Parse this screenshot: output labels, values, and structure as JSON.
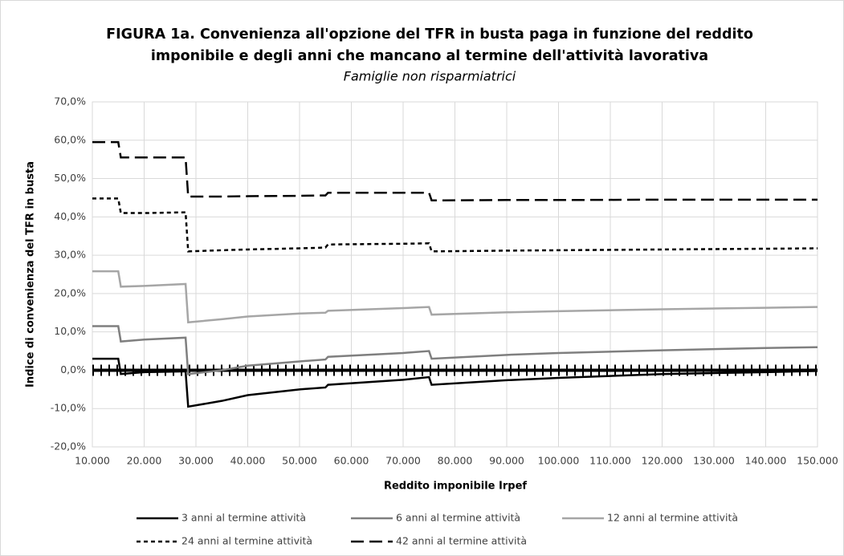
{
  "chart_data": {
    "type": "line",
    "title": [
      "FIGURA 1a. Convenienza all'opzione del TFR in busta paga in funzione del reddito",
      "imponibile e degli anni che mancano al termine dell'attività lavorativa"
    ],
    "subtitle": "Famiglie non risparmiatrici",
    "x_label": "Reddito imponibile Irpef",
    "y_label": "Indice di convenienza del TFR in  busta",
    "x": [
      10000,
      15000,
      15500,
      20000,
      28000,
      28500,
      35000,
      40000,
      50000,
      55000,
      55500,
      70000,
      75000,
      75500,
      90000,
      100000,
      120000,
      140000,
      150000
    ],
    "series": [
      {
        "name": "3 anni al termine attività",
        "color": "#000000",
        "dash": "none",
        "values": [
          3.0,
          3.0,
          -1.0,
          -0.5,
          -0.3,
          -9.5,
          -8.0,
          -6.5,
          -5.0,
          -4.5,
          -3.8,
          -2.5,
          -1.8,
          -3.8,
          -2.6,
          -2.0,
          -1.0,
          -0.5,
          -0.2
        ]
      },
      {
        "name": "6 anni al termine attività",
        "color": "#7f7f7f",
        "dash": "none",
        "values": [
          11.5,
          11.5,
          7.5,
          8.0,
          8.5,
          -1.0,
          0.0,
          1.2,
          2.3,
          2.8,
          3.5,
          4.5,
          5.0,
          3.0,
          4.0,
          4.5,
          5.2,
          5.8,
          6.0
        ]
      },
      {
        "name": "12 anni al termine attività",
        "color": "#a6a6a6",
        "dash": "none",
        "values": [
          25.8,
          25.8,
          21.8,
          22.0,
          22.5,
          12.5,
          13.3,
          14.0,
          14.8,
          15.0,
          15.5,
          16.2,
          16.5,
          14.5,
          15.1,
          15.4,
          15.9,
          16.3,
          16.5
        ]
      },
      {
        "name": "24 anni al termine attività",
        "color": "#000000",
        "dash": "5,4",
        "values": [
          44.8,
          44.8,
          41.0,
          41.0,
          41.2,
          31.0,
          31.3,
          31.5,
          31.8,
          32.0,
          32.8,
          33.0,
          33.1,
          31.0,
          31.2,
          31.3,
          31.5,
          31.7,
          31.8
        ]
      },
      {
        "name": "42 anni al termine attività",
        "color": "#000000",
        "dash": "16,7",
        "values": [
          59.5,
          59.5,
          55.5,
          55.5,
          55.5,
          45.3,
          45.3,
          45.4,
          45.5,
          45.6,
          46.3,
          46.3,
          46.3,
          44.3,
          44.4,
          44.4,
          44.5,
          44.5,
          44.5
        ]
      }
    ],
    "xlim": [
      10000,
      150000
    ],
    "xticks": [
      {
        "value": 10000,
        "label": "10.000"
      },
      {
        "value": 20000,
        "label": "20.000"
      },
      {
        "value": 30000,
        "label": "30.000"
      },
      {
        "value": 40000,
        "label": "40.000"
      },
      {
        "value": 50000,
        "label": "50.000"
      },
      {
        "value": 60000,
        "label": "60.000"
      },
      {
        "value": 70000,
        "label": "70.000"
      },
      {
        "value": 80000,
        "label": "80.000"
      },
      {
        "value": 90000,
        "label": "90.000"
      },
      {
        "value": 100000,
        "label": "100.000"
      },
      {
        "value": 110000,
        "label": "110.000"
      },
      {
        "value": 120000,
        "label": "120.000"
      },
      {
        "value": 130000,
        "label": "130.000"
      },
      {
        "value": 140000,
        "label": "140.000"
      },
      {
        "value": 150000,
        "label": "150.000"
      }
    ],
    "ylim": [
      -20,
      70
    ],
    "yticks": [
      {
        "value": -20,
        "label": "-20,0%"
      },
      {
        "value": -10,
        "label": "-10,0%"
      },
      {
        "value": 0,
        "label": "0,0%"
      },
      {
        "value": 10,
        "label": "10,0%"
      },
      {
        "value": 20,
        "label": "20,0%"
      },
      {
        "value": 30,
        "label": "30,0%"
      },
      {
        "value": 40,
        "label": "40,0%"
      },
      {
        "value": 50,
        "label": "50,0%"
      },
      {
        "value": 60,
        "label": "60,0%"
      },
      {
        "value": 70,
        "label": "70,0%"
      }
    ],
    "grid": true,
    "legend": "bottom"
  }
}
